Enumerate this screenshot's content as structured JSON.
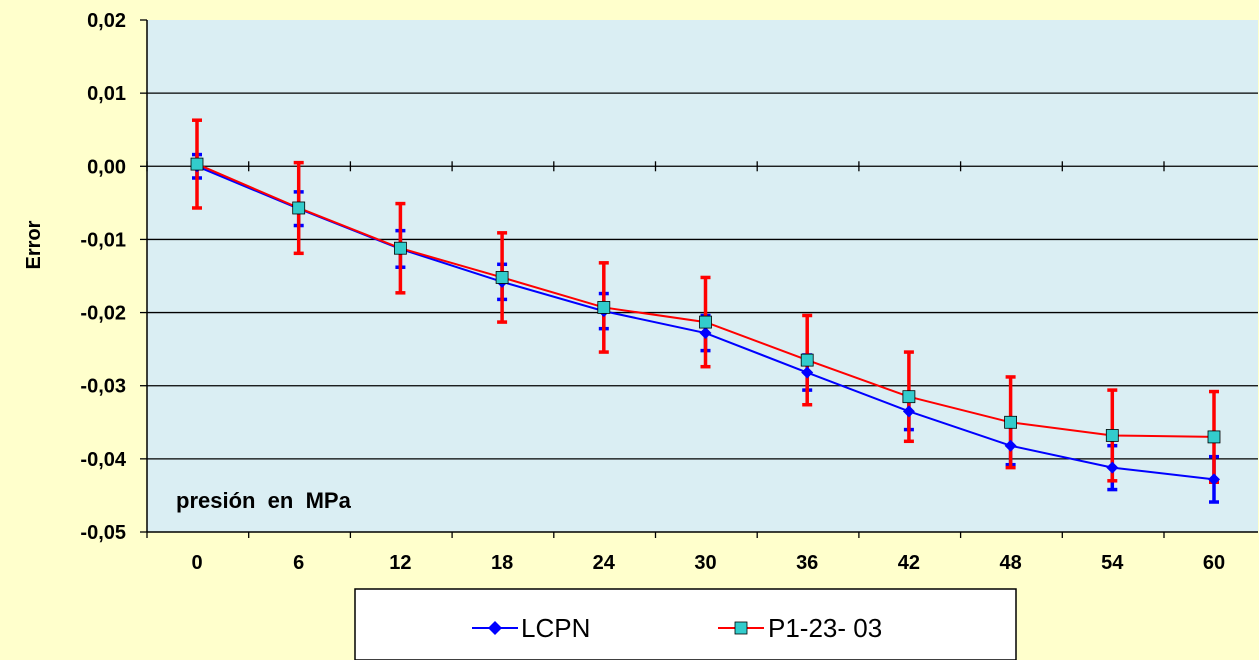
{
  "chart_data": {
    "type": "line",
    "title": "",
    "xlabel": "",
    "ylabel": "Error",
    "annotation": "presión  en  MPa",
    "x": [
      0,
      6,
      12,
      18,
      24,
      30,
      36,
      42,
      48,
      54,
      60
    ],
    "x_tick_labels": [
      "0",
      "6",
      "12",
      "18",
      "24",
      "30",
      "36",
      "42",
      "48",
      "54",
      "60"
    ],
    "y_tick_labels": [
      "0,02",
      "0,01",
      "0,00",
      "-0,01",
      "-0,02",
      "-0,03",
      "-0,04",
      "-0,05"
    ],
    "ylim": [
      -0.05,
      0.02
    ],
    "grid": "horizontal",
    "legend_position": "bottom",
    "series": [
      {
        "name": "LCPN",
        "color": "#0000ff",
        "marker": "diamond",
        "values": [
          0.0,
          -0.0058,
          -0.0113,
          -0.0158,
          -0.0198,
          -0.0228,
          -0.0282,
          -0.0335,
          -0.0382,
          -0.0412,
          -0.0428
        ],
        "error": [
          0.0016,
          0.0023,
          0.0025,
          0.0024,
          0.0024,
          0.0024,
          0.0024,
          0.0025,
          0.0026,
          0.003,
          0.0031
        ]
      },
      {
        "name": "P1-23- 03",
        "color": "#ff0000",
        "marker": "square",
        "marker_fill": "#33cccc",
        "values": [
          0.0003,
          -0.0057,
          -0.0112,
          -0.0152,
          -0.0193,
          -0.0213,
          -0.0265,
          -0.0315,
          -0.035,
          -0.0368,
          -0.037
        ],
        "error": [
          0.006,
          0.0062,
          0.0061,
          0.0061,
          0.0061,
          0.0061,
          0.0061,
          0.0061,
          0.0062,
          0.0062,
          0.0062
        ]
      }
    ]
  }
}
